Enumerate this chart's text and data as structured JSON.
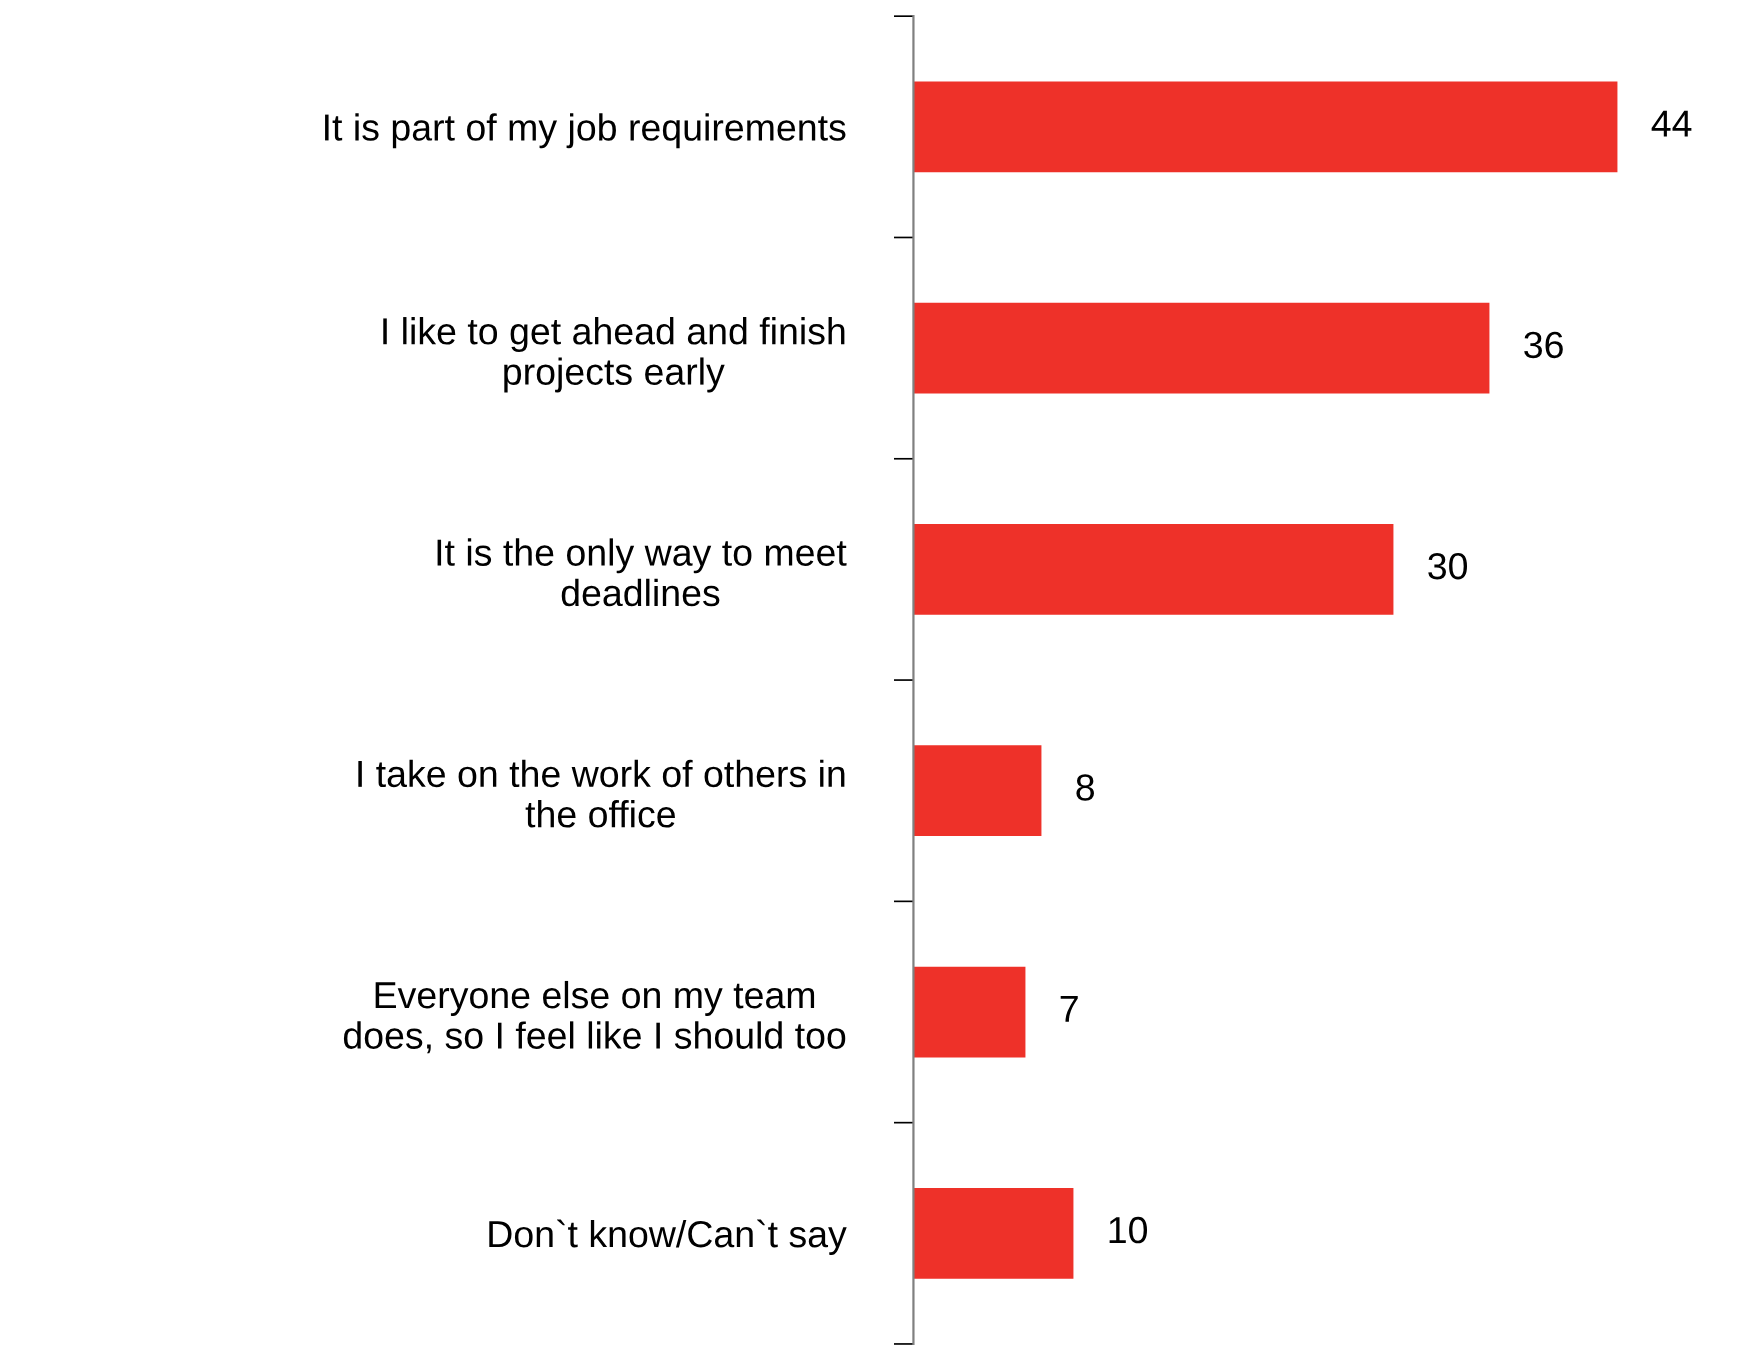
{
  "chart_data": {
    "type": "bar",
    "orientation": "horizontal",
    "data_labels": true,
    "grid": false,
    "legend": false,
    "tick_labels": "y",
    "categories": [
      "It is part of my job requirements",
      "I like to get ahead and finish\nprojects early",
      "It is the only way to meet\ndeadlines",
      "I take on the work of others in\nthe office",
      "Everyone else on my team\ndoes, so I feel like I should too",
      "Don`t know/Can`t say"
    ],
    "values": [
      44,
      36,
      30,
      8,
      7,
      10
    ],
    "color": "#ee3129"
  }
}
